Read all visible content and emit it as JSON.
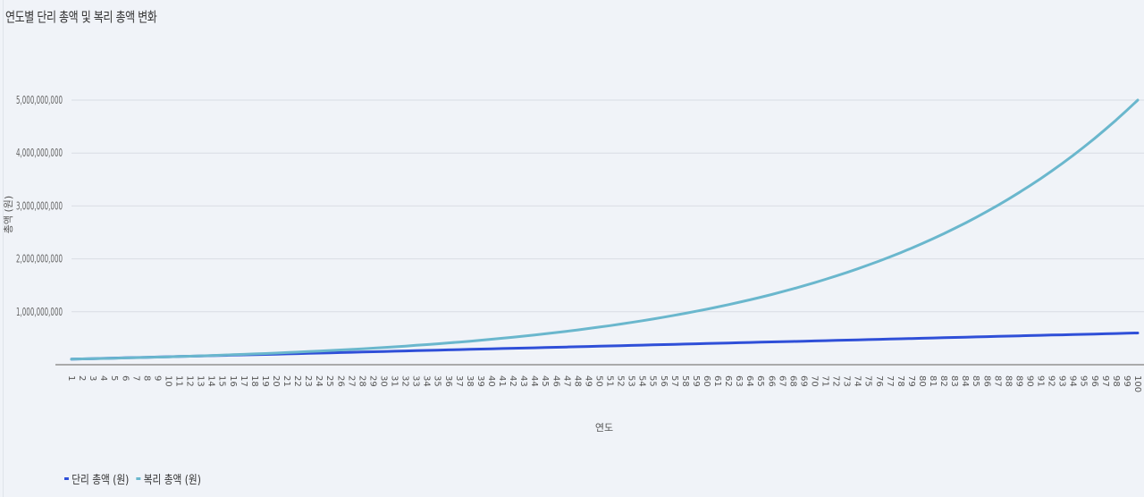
{
  "chart_data": {
    "type": "line",
    "title": "연도별 단리 총액 및 복리 총액 변화",
    "xlabel": "연도",
    "ylabel": "총액 (원)",
    "ylim": [
      0,
      5000000000
    ],
    "yticks": [
      {
        "value": 1000000000,
        "label": "1,000,000,000"
      },
      {
        "value": 2000000000,
        "label": "2,000,000,000"
      },
      {
        "value": 3000000000,
        "label": "3,000,000,000"
      },
      {
        "value": 4000000000,
        "label": "4,000,000,000"
      },
      {
        "value": 5000000000,
        "label": "5,000,000,000"
      }
    ],
    "grid": true,
    "legend_position": "bottom-left",
    "x": {
      "start": 1,
      "end": 100,
      "step": 1
    },
    "series": [
      {
        "name": "단리 총액 (원)",
        "color": "#2f4fd8",
        "formula": "linear",
        "first_value": 105000000,
        "last_value": 600000000
      },
      {
        "name": "복리 총액 (원)",
        "color": "#6ab7cd",
        "formula": "compound",
        "first_value": 105000000,
        "last_value": 5000000000
      }
    ]
  }
}
